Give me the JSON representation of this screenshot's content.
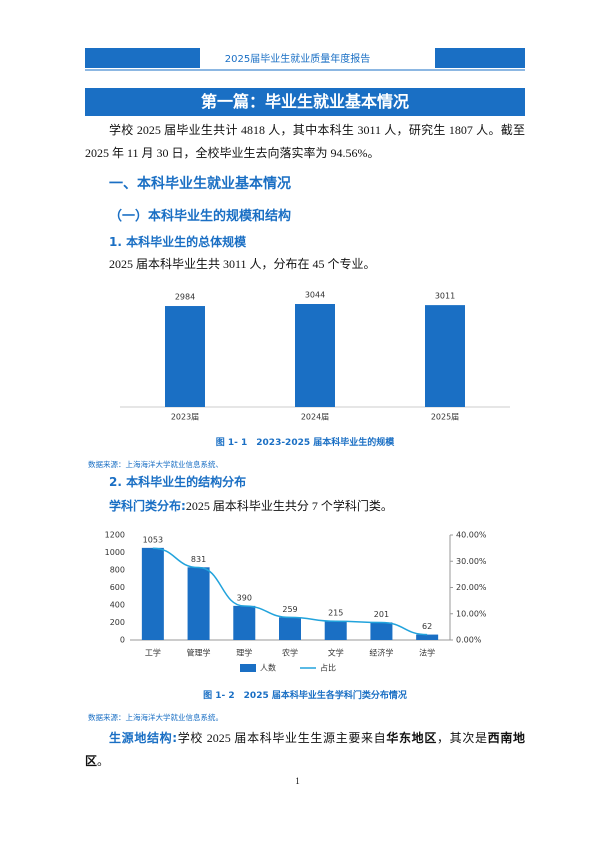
{
  "header": {
    "title": "2025届毕业生就业质量年度报告"
  },
  "chapter_title": "第一篇：毕业生就业基本情况",
  "intro": "学校 2025 届毕业生共计 4818 人，其中本科生 3011 人，研究生 1807 人。截至 2025 年 11 月 30 日，全校毕业生去向落实率为 94.56%。",
  "section_1": "一、本科毕业生就业基本情况",
  "subsection_1": "（一）本科毕业生的规模和结构",
  "item_1": "1. 本科毕业生的总体规模",
  "item_1_text": "2025 届本科毕业生共 3011 人，分布在 45 个专业。",
  "figure_1": {
    "caption": "图 1- 1　2023-2025 届本科毕业生的规模",
    "source": "数据来源：上海海洋大学就业信息系统、"
  },
  "item_2": "2. 本科毕业生的结构分布",
  "item_2_text": {
    "lead": "学科门类分布:",
    "text": "2025 届本科毕业生共分 7 个学科门类。"
  },
  "figure_2": {
    "caption": "图 1- 2　2025 届本科毕业生各学科门类分布情况",
    "source": "数据来源：上海海洋大学就业信息系统。"
  },
  "origin_text": {
    "lead": "生源地结构:",
    "part1": "学校 2025 届本科毕业生生源主要来自",
    "bold1": "华东地区",
    "part2": "，其次是",
    "bold2": "西南地区",
    "part3": "。"
  },
  "page_number": "1",
  "chart_data": [
    {
      "type": "bar",
      "categories": [
        "2023届",
        "2024届",
        "2025届"
      ],
      "values": [
        2984,
        3044,
        3011
      ],
      "color": "#1a6fc4"
    },
    {
      "type": "combo",
      "categories": [
        "工学",
        "管理学",
        "理学",
        "农学",
        "文学",
        "经济学",
        "法学"
      ],
      "series": [
        {
          "name": "人数",
          "type": "bar",
          "color": "#1a6fc4",
          "values": [
            1053,
            831,
            390,
            259,
            215,
            201,
            62
          ]
        },
        {
          "name": "占比",
          "type": "line",
          "axis": "y2",
          "color": "#22a3dc",
          "values": [
            34.97,
            27.6,
            12.95,
            8.6,
            7.14,
            6.68,
            2.06
          ]
        }
      ],
      "ylim": [
        0,
        1200
      ],
      "yticks": [
        0,
        200,
        400,
        600,
        800,
        1000,
        1200
      ],
      "y2lim": [
        0,
        40
      ],
      "y2ticks": [
        {
          "value": 0,
          "label": "0.00%"
        },
        {
          "value": 10,
          "label": "10.00%"
        },
        {
          "value": 20,
          "label": "20.00%"
        },
        {
          "value": 30,
          "label": "30.00%"
        },
        {
          "value": 40,
          "label": "40.00%"
        }
      ],
      "legend": "bottom"
    }
  ]
}
